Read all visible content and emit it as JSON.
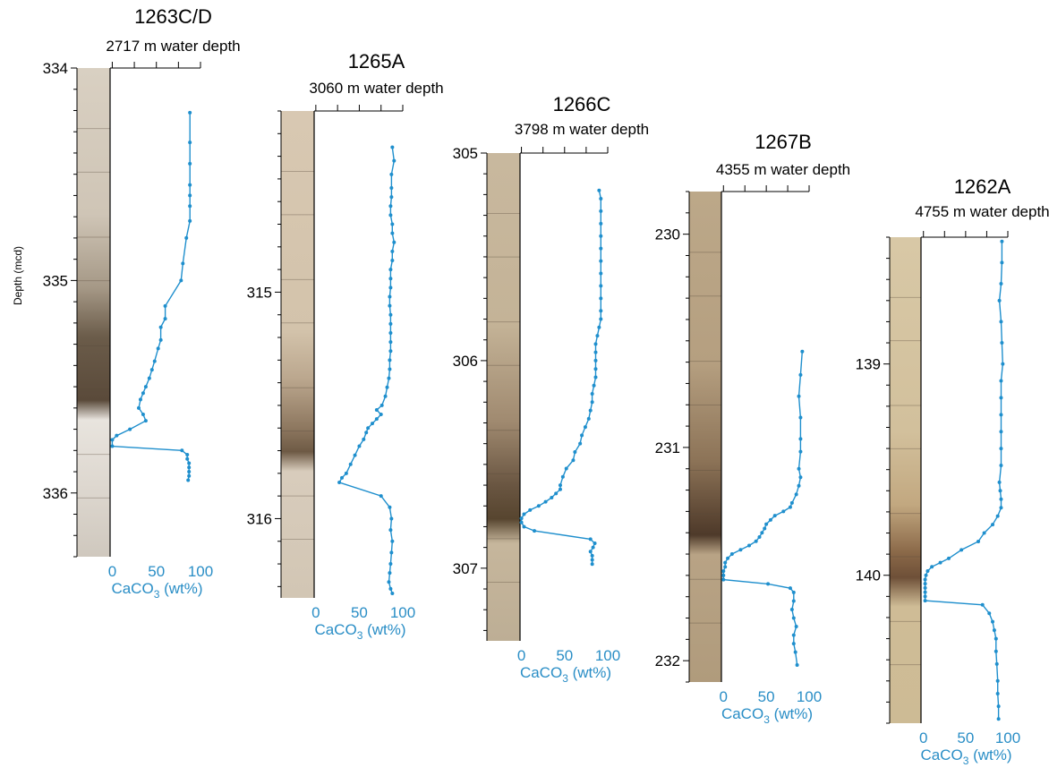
{
  "figure": {
    "ylabel": "Depth (mcd)",
    "series_color": "#1f8fcd"
  },
  "chart_data": [
    {
      "type": "line",
      "title": "1263C/D",
      "subtitle": "2717 m water depth",
      "xlabel_main": "CaCO",
      "xlabel_sub": "3",
      "xlabel_unit": " (wt%)",
      "ylabel": "Depth (mcd)",
      "xlim": [
        -40,
        100
      ],
      "ylim": [
        334,
        336.3
      ],
      "xticks": [
        0,
        50,
        100
      ],
      "yticks": [
        334,
        335,
        336
      ],
      "data": [
        [
          88,
          334.21
        ],
        [
          88,
          334.35
        ],
        [
          88,
          334.45
        ],
        [
          88,
          334.55
        ],
        [
          88,
          334.6
        ],
        [
          88,
          334.65
        ],
        [
          88,
          334.72
        ],
        [
          84,
          334.8
        ],
        [
          80,
          334.92
        ],
        [
          78,
          335.0
        ],
        [
          60,
          335.12
        ],
        [
          60,
          335.18
        ],
        [
          55,
          335.22
        ],
        [
          55,
          335.28
        ],
        [
          52,
          335.32
        ],
        [
          48,
          335.38
        ],
        [
          45,
          335.42
        ],
        [
          42,
          335.46
        ],
        [
          38,
          335.5
        ],
        [
          35,
          335.53
        ],
        [
          32,
          335.56
        ],
        [
          30,
          335.6
        ],
        [
          35,
          335.63
        ],
        [
          38,
          335.66
        ],
        [
          20,
          335.7
        ],
        [
          5,
          335.73
        ],
        [
          0,
          335.75
        ],
        [
          0,
          335.78
        ],
        [
          79,
          335.8
        ],
        [
          85,
          335.82
        ],
        [
          85,
          335.84
        ],
        [
          87,
          335.86
        ],
        [
          87,
          335.88
        ],
        [
          87,
          335.9
        ],
        [
          87,
          335.92
        ],
        [
          86,
          335.94
        ]
      ]
    },
    {
      "type": "line",
      "title": "1265A",
      "subtitle": "3060 m water depth",
      "xlabel_main": "CaCO",
      "xlabel_sub": "3",
      "xlabel_unit": " (wt%)",
      "ylabel": "",
      "xlim": [
        -40,
        100
      ],
      "ylim": [
        314.2,
        316.35
      ],
      "xticks": [
        0,
        50,
        100
      ],
      "yticks": [
        315,
        316
      ],
      "data": [
        [
          88,
          314.36
        ],
        [
          90,
          314.42
        ],
        [
          87,
          314.48
        ],
        [
          87,
          314.54
        ],
        [
          87,
          314.58
        ],
        [
          86,
          314.62
        ],
        [
          86,
          314.66
        ],
        [
          88,
          314.7
        ],
        [
          88,
          314.74
        ],
        [
          90,
          314.78
        ],
        [
          88,
          314.82
        ],
        [
          88,
          314.86
        ],
        [
          86,
          314.9
        ],
        [
          86,
          314.94
        ],
        [
          86,
          314.98
        ],
        [
          85,
          315.02
        ],
        [
          85,
          315.06
        ],
        [
          86,
          315.1
        ],
        [
          86,
          315.14
        ],
        [
          86,
          315.18
        ],
        [
          86,
          315.22
        ],
        [
          86,
          315.26
        ],
        [
          85,
          315.3
        ],
        [
          85,
          315.34
        ],
        [
          84,
          315.38
        ],
        [
          82,
          315.42
        ],
        [
          80,
          315.46
        ],
        [
          76,
          315.5
        ],
        [
          70,
          315.52
        ],
        [
          75,
          315.54
        ],
        [
          70,
          315.56
        ],
        [
          65,
          315.58
        ],
        [
          60,
          315.6
        ],
        [
          58,
          315.62
        ],
        [
          55,
          315.65
        ],
        [
          50,
          315.68
        ],
        [
          45,
          315.72
        ],
        [
          40,
          315.76
        ],
        [
          35,
          315.8
        ],
        [
          30,
          315.82
        ],
        [
          27,
          315.84
        ],
        [
          75,
          315.9
        ],
        [
          85,
          315.95
        ],
        [
          87,
          316.0
        ],
        [
          86,
          316.05
        ],
        [
          88,
          316.1
        ],
        [
          87,
          316.15
        ],
        [
          86,
          316.2
        ],
        [
          85,
          316.24
        ],
        [
          84,
          316.28
        ],
        [
          86,
          316.31
        ],
        [
          88,
          316.33
        ]
      ]
    },
    {
      "type": "line",
      "title": "1266C",
      "subtitle": "3798 m water depth",
      "xlabel_main": "CaCO",
      "xlabel_sub": "3",
      "xlabel_unit": " (wt%)",
      "ylabel": "",
      "xlim": [
        -40,
        100
      ],
      "ylim": [
        305,
        307.35
      ],
      "xticks": [
        0,
        50,
        100
      ],
      "yticks": [
        305,
        306,
        307
      ],
      "data": [
        [
          90,
          305.18
        ],
        [
          92,
          305.22
        ],
        [
          92,
          305.28
        ],
        [
          92,
          305.34
        ],
        [
          92,
          305.4
        ],
        [
          92,
          305.46
        ],
        [
          92,
          305.52
        ],
        [
          92,
          305.58
        ],
        [
          92,
          305.64
        ],
        [
          92,
          305.7
        ],
        [
          92,
          305.76
        ],
        [
          92,
          305.8
        ],
        [
          90,
          305.84
        ],
        [
          88,
          305.88
        ],
        [
          86,
          305.92
        ],
        [
          86,
          305.96
        ],
        [
          86,
          306.0
        ],
        [
          86,
          306.04
        ],
        [
          86,
          306.08
        ],
        [
          84,
          306.12
        ],
        [
          82,
          306.16
        ],
        [
          82,
          306.2
        ],
        [
          80,
          306.24
        ],
        [
          78,
          306.28
        ],
        [
          74,
          306.32
        ],
        [
          70,
          306.36
        ],
        [
          68,
          306.4
        ],
        [
          62,
          306.44
        ],
        [
          60,
          306.48
        ],
        [
          52,
          306.52
        ],
        [
          48,
          306.56
        ],
        [
          45,
          306.6
        ],
        [
          45,
          306.62
        ],
        [
          40,
          306.64
        ],
        [
          35,
          306.66
        ],
        [
          28,
          306.68
        ],
        [
          20,
          306.7
        ],
        [
          10,
          306.72
        ],
        [
          3,
          306.74
        ],
        [
          0,
          306.76
        ],
        [
          0,
          306.78
        ],
        [
          3,
          306.8
        ],
        [
          15,
          306.82
        ],
        [
          80,
          306.86
        ],
        [
          85,
          306.88
        ],
        [
          83,
          306.9
        ],
        [
          80,
          306.92
        ],
        [
          82,
          306.94
        ],
        [
          82,
          306.96
        ],
        [
          82,
          306.98
        ]
      ]
    },
    {
      "type": "line",
      "title": "1267B",
      "subtitle": "4355 m water depth",
      "xlabel_main": "CaCO",
      "xlabel_sub": "3",
      "xlabel_unit": " (wt%)",
      "ylabel": "",
      "xlim": [
        -40,
        100
      ],
      "ylim": [
        229.8,
        232.1
      ],
      "xticks": [
        0,
        50,
        100
      ],
      "yticks": [
        230,
        231,
        232
      ],
      "data": [
        [
          92,
          230.55
        ],
        [
          90,
          230.66
        ],
        [
          88,
          230.76
        ],
        [
          90,
          230.86
        ],
        [
          90,
          230.96
        ],
        [
          90,
          231.02
        ],
        [
          88,
          231.1
        ],
        [
          90,
          231.14
        ],
        [
          88,
          231.18
        ],
        [
          85,
          231.22
        ],
        [
          80,
          231.26
        ],
        [
          78,
          231.28
        ],
        [
          70,
          231.3
        ],
        [
          60,
          231.32
        ],
        [
          55,
          231.34
        ],
        [
          50,
          231.36
        ],
        [
          48,
          231.38
        ],
        [
          45,
          231.4
        ],
        [
          42,
          231.42
        ],
        [
          38,
          231.44
        ],
        [
          30,
          231.46
        ],
        [
          20,
          231.48
        ],
        [
          10,
          231.5
        ],
        [
          5,
          231.52
        ],
        [
          2,
          231.54
        ],
        [
          2,
          231.56
        ],
        [
          0,
          231.58
        ],
        [
          0,
          231.6
        ],
        [
          0,
          231.62
        ],
        [
          52,
          231.64
        ],
        [
          78,
          231.66
        ],
        [
          82,
          231.68
        ],
        [
          82,
          231.72
        ],
        [
          80,
          231.76
        ],
        [
          82,
          231.8
        ],
        [
          85,
          231.84
        ],
        [
          82,
          231.88
        ],
        [
          82,
          231.92
        ],
        [
          84,
          231.96
        ],
        [
          86,
          232.02
        ]
      ]
    },
    {
      "type": "line",
      "title": "1262A",
      "subtitle": "4755 m water depth",
      "xlabel_main": "CaCO",
      "xlabel_sub": "3",
      "xlabel_unit": " (wt%)",
      "ylabel": "",
      "xlim": [
        -40,
        100
      ],
      "ylim": [
        138.4,
        140.7
      ],
      "xticks": [
        0,
        50,
        100
      ],
      "yticks": [
        139,
        140
      ],
      "data": [
        [
          93,
          138.42
        ],
        [
          93,
          138.52
        ],
        [
          92,
          138.62
        ],
        [
          90,
          138.7
        ],
        [
          92,
          138.8
        ],
        [
          93,
          138.9
        ],
        [
          94,
          139.0
        ],
        [
          92,
          139.08
        ],
        [
          92,
          139.16
        ],
        [
          92,
          139.24
        ],
        [
          92,
          139.32
        ],
        [
          92,
          139.4
        ],
        [
          92,
          139.48
        ],
        [
          90,
          139.56
        ],
        [
          91,
          139.6
        ],
        [
          92,
          139.64
        ],
        [
          92,
          139.68
        ],
        [
          88,
          139.72
        ],
        [
          82,
          139.76
        ],
        [
          72,
          139.8
        ],
        [
          65,
          139.84
        ],
        [
          45,
          139.88
        ],
        [
          30,
          139.92
        ],
        [
          20,
          139.94
        ],
        [
          10,
          139.96
        ],
        [
          5,
          139.98
        ],
        [
          3,
          140.0
        ],
        [
          2,
          140.02
        ],
        [
          2,
          140.04
        ],
        [
          2,
          140.06
        ],
        [
          2,
          140.08
        ],
        [
          2,
          140.1
        ],
        [
          2,
          140.12
        ],
        [
          70,
          140.14
        ],
        [
          78,
          140.18
        ],
        [
          82,
          140.22
        ],
        [
          84,
          140.26
        ],
        [
          86,
          140.3
        ],
        [
          86,
          140.36
        ],
        [
          87,
          140.42
        ],
        [
          88,
          140.5
        ],
        [
          88,
          140.56
        ],
        [
          89,
          140.62
        ],
        [
          89,
          140.68
        ]
      ]
    }
  ]
}
